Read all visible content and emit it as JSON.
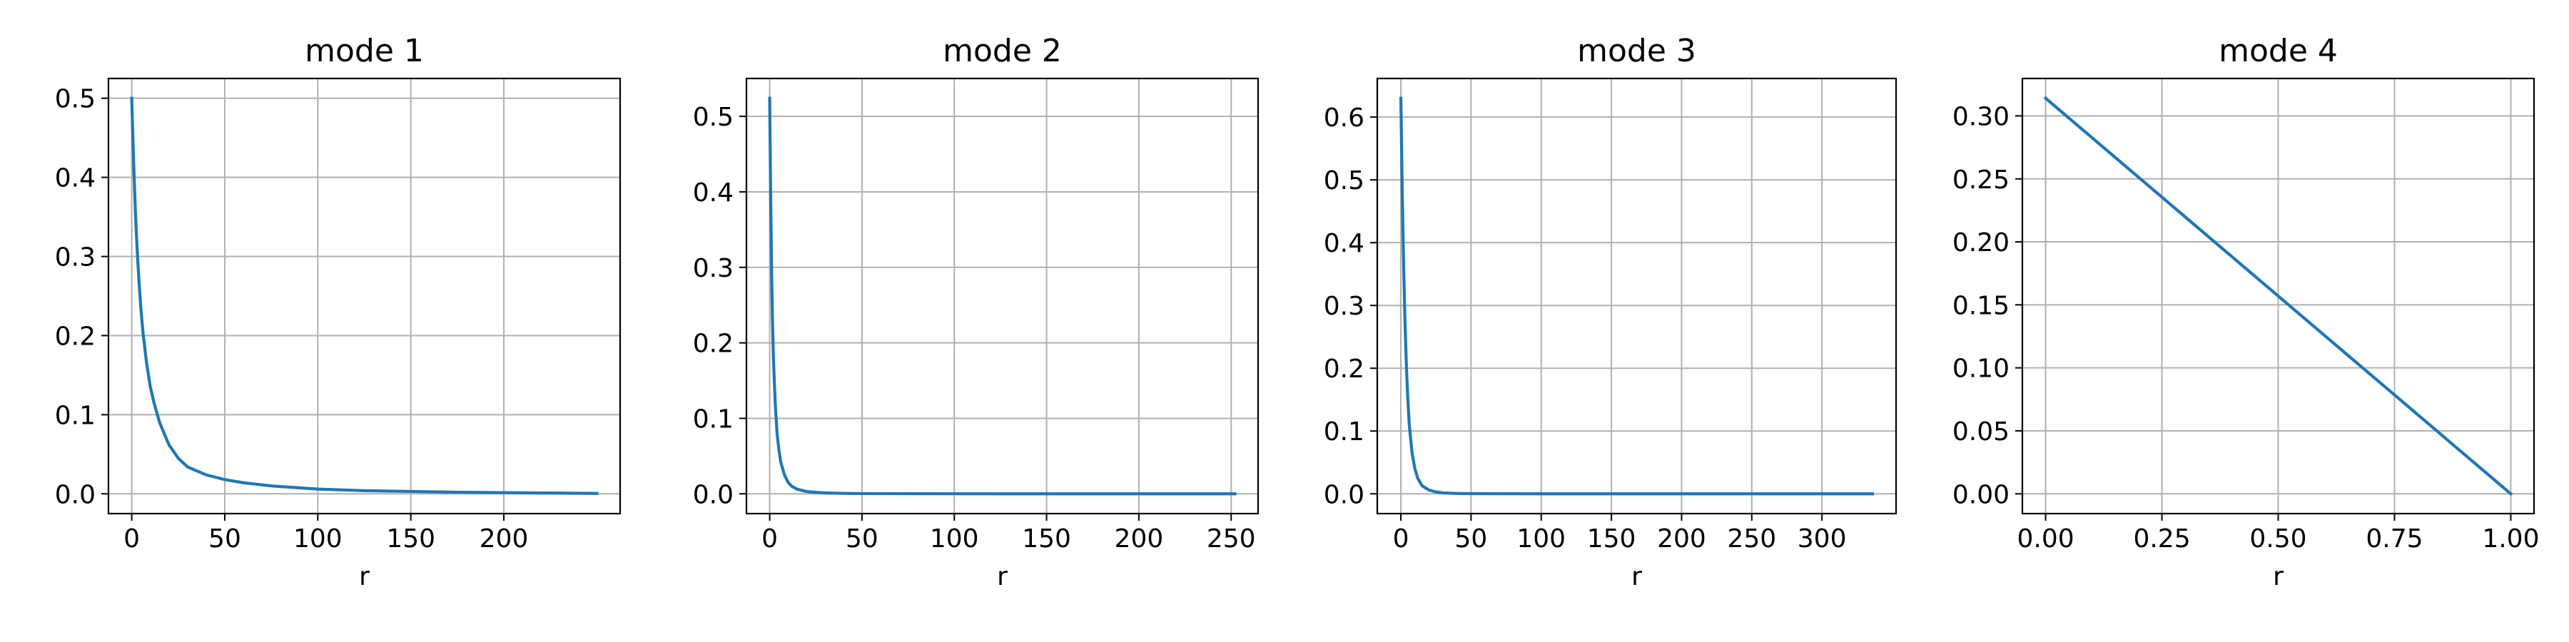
{
  "chart_data": [
    {
      "type": "line",
      "title": "mode 1",
      "xlabel": "r",
      "ylabel": "",
      "xlim": [
        -12.5,
        262.5
      ],
      "ylim": [
        -0.025,
        0.525
      ],
      "xticks": [
        0,
        50,
        100,
        150,
        200
      ],
      "xtick_labels": [
        "0",
        "50",
        "100",
        "150",
        "200"
      ],
      "yticks": [
        0.0,
        0.1,
        0.2,
        0.3,
        0.4,
        0.5
      ],
      "ytick_labels": [
        "0.0",
        "0.1",
        "0.2",
        "0.3",
        "0.4",
        "0.5"
      ],
      "grid": true,
      "color": "#1f77b4",
      "series": [
        {
          "x": [
            0,
            1,
            2,
            3,
            4,
            5,
            6,
            8,
            10,
            12,
            15,
            20,
            25,
            30,
            40,
            50,
            60,
            75,
            100,
            125,
            150,
            175,
            200,
            225,
            250
          ],
          "y": [
            0.5,
            0.42,
            0.355,
            0.305,
            0.265,
            0.232,
            0.205,
            0.165,
            0.135,
            0.115,
            0.09,
            0.062,
            0.045,
            0.034,
            0.024,
            0.018,
            0.014,
            0.01,
            0.006,
            0.004,
            0.003,
            0.002,
            0.0015,
            0.001,
            0.0005
          ]
        }
      ]
    },
    {
      "type": "line",
      "title": "mode 2",
      "xlabel": "r",
      "ylabel": "",
      "xlim": [
        -12.6,
        264.6
      ],
      "ylim": [
        -0.0262,
        0.5502
      ],
      "xticks": [
        0,
        50,
        100,
        150,
        200,
        250
      ],
      "xtick_labels": [
        "0",
        "50",
        "100",
        "150",
        "200",
        "250"
      ],
      "yticks": [
        0.0,
        0.1,
        0.2,
        0.3,
        0.4,
        0.5
      ],
      "ytick_labels": [
        "0.0",
        "0.1",
        "0.2",
        "0.3",
        "0.4",
        "0.5"
      ],
      "grid": true,
      "color": "#1f77b4",
      "series": [
        {
          "x": [
            0,
            0.5,
            1,
            1.5,
            2,
            3,
            4,
            5,
            6,
            8,
            10,
            12,
            15,
            20,
            25,
            30,
            40,
            50,
            100,
            150,
            200,
            252
          ],
          "y": [
            0.524,
            0.4,
            0.3,
            0.23,
            0.18,
            0.12,
            0.08,
            0.058,
            0.042,
            0.025,
            0.015,
            0.01,
            0.006,
            0.003,
            0.002,
            0.0012,
            0.0006,
            0.0003,
            0.0001,
            0.0,
            0.0,
            0.0
          ]
        }
      ]
    },
    {
      "type": "line",
      "title": "mode 3",
      "xlabel": "r",
      "ylabel": "",
      "xlim": [
        -16.8,
        352.8
      ],
      "ylim": [
        -0.0315,
        0.6615
      ],
      "xticks": [
        0,
        50,
        100,
        150,
        200,
        250,
        300
      ],
      "xtick_labels": [
        "0",
        "50",
        "100",
        "150",
        "200",
        "250",
        "300"
      ],
      "yticks": [
        0.0,
        0.1,
        0.2,
        0.3,
        0.4,
        0.5,
        0.6
      ],
      "ytick_labels": [
        "0.0",
        "0.1",
        "0.2",
        "0.3",
        "0.4",
        "0.5",
        "0.6"
      ],
      "grid": true,
      "color": "#1f77b4",
      "series": [
        {
          "x": [
            0,
            1,
            2,
            3,
            4,
            5,
            6,
            8,
            10,
            12,
            15,
            20,
            25,
            30,
            40,
            50,
            100,
            200,
            300,
            336
          ],
          "y": [
            0.63,
            0.48,
            0.36,
            0.27,
            0.2,
            0.15,
            0.11,
            0.065,
            0.04,
            0.025,
            0.013,
            0.006,
            0.003,
            0.0015,
            0.0006,
            0.0003,
            0.0,
            0.0,
            0.0,
            0.0
          ]
        }
      ]
    },
    {
      "type": "line",
      "title": "mode 4",
      "xlabel": "r",
      "ylabel": "",
      "xlim": [
        -0.05,
        1.05
      ],
      "ylim": [
        -0.0157,
        0.3297
      ],
      "xticks": [
        0.0,
        0.25,
        0.5,
        0.75,
        1.0
      ],
      "xtick_labels": [
        "0.00",
        "0.25",
        "0.50",
        "0.75",
        "1.00"
      ],
      "yticks": [
        0.0,
        0.05,
        0.1,
        0.15,
        0.2,
        0.25,
        0.3
      ],
      "ytick_labels": [
        "0.00",
        "0.05",
        "0.10",
        "0.15",
        "0.20",
        "0.25",
        "0.30"
      ],
      "grid": true,
      "color": "#1f77b4",
      "series": [
        {
          "x": [
            0.0,
            1.0
          ],
          "y": [
            0.314,
            0.0
          ]
        }
      ]
    }
  ]
}
